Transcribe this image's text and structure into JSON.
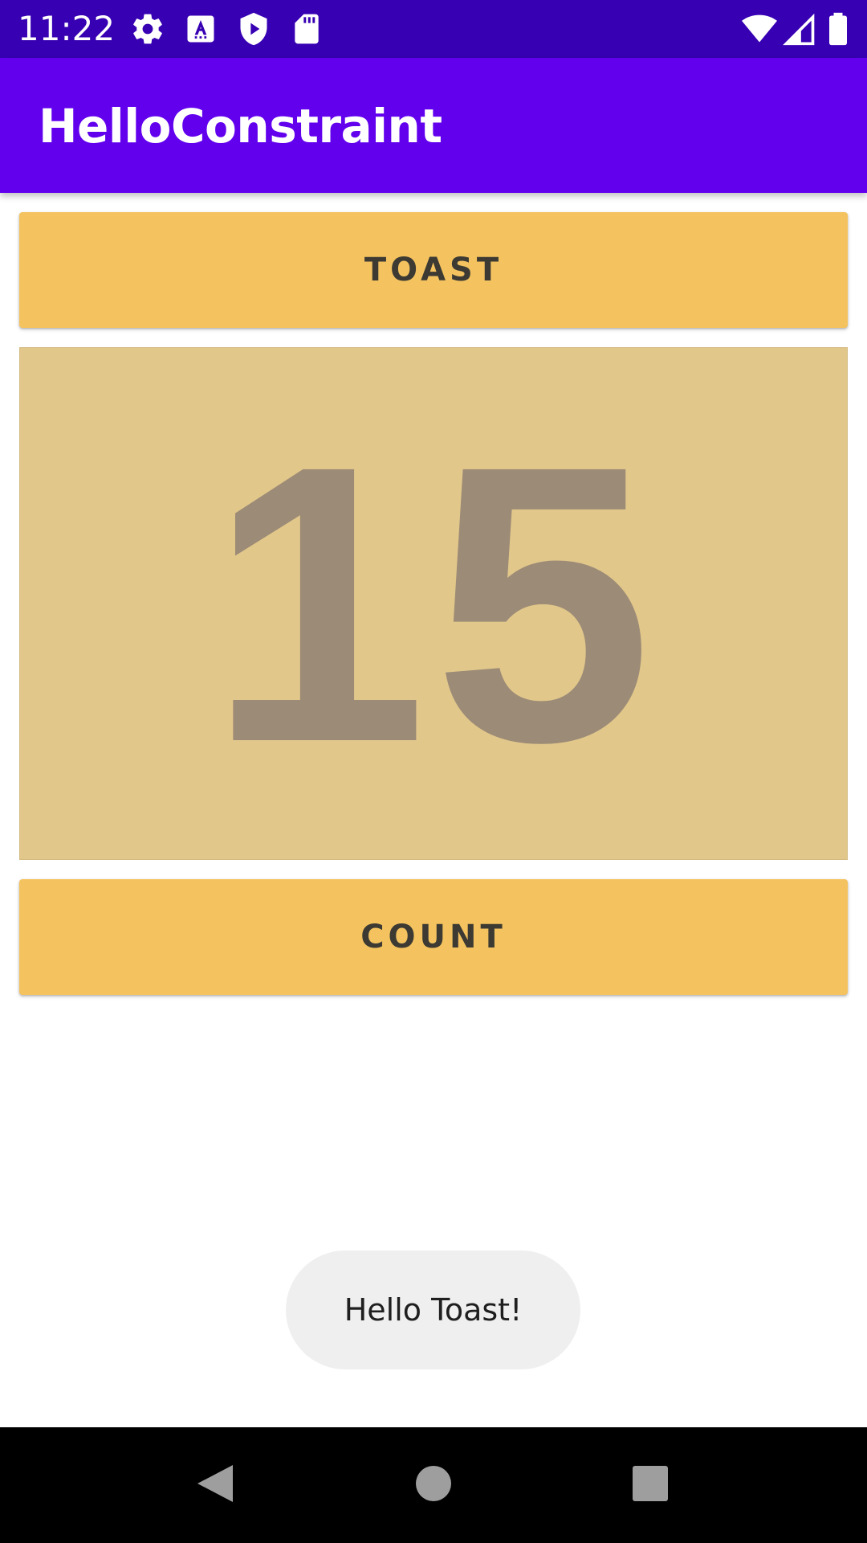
{
  "status_bar": {
    "time": "11:22",
    "icons": [
      "settings-icon",
      "keyboard-a-icon",
      "play-protect-icon",
      "sd-card-icon",
      "wifi-icon",
      "cell-signal-icon",
      "battery-icon"
    ],
    "background": "#3700b3"
  },
  "app_bar": {
    "title": "HelloConstraint",
    "background": "#6200ee"
  },
  "main": {
    "toast_button_label": "TOAST",
    "count_value": "15",
    "count_button_label": "COUNT",
    "button_color": "#f4c35f",
    "count_background": "#e2c78b",
    "count_text_color": "#9c8b76"
  },
  "toast": {
    "message": "Hello Toast!"
  },
  "nav_bar": {
    "buttons": [
      "back-icon",
      "home-icon",
      "recents-icon"
    ]
  }
}
